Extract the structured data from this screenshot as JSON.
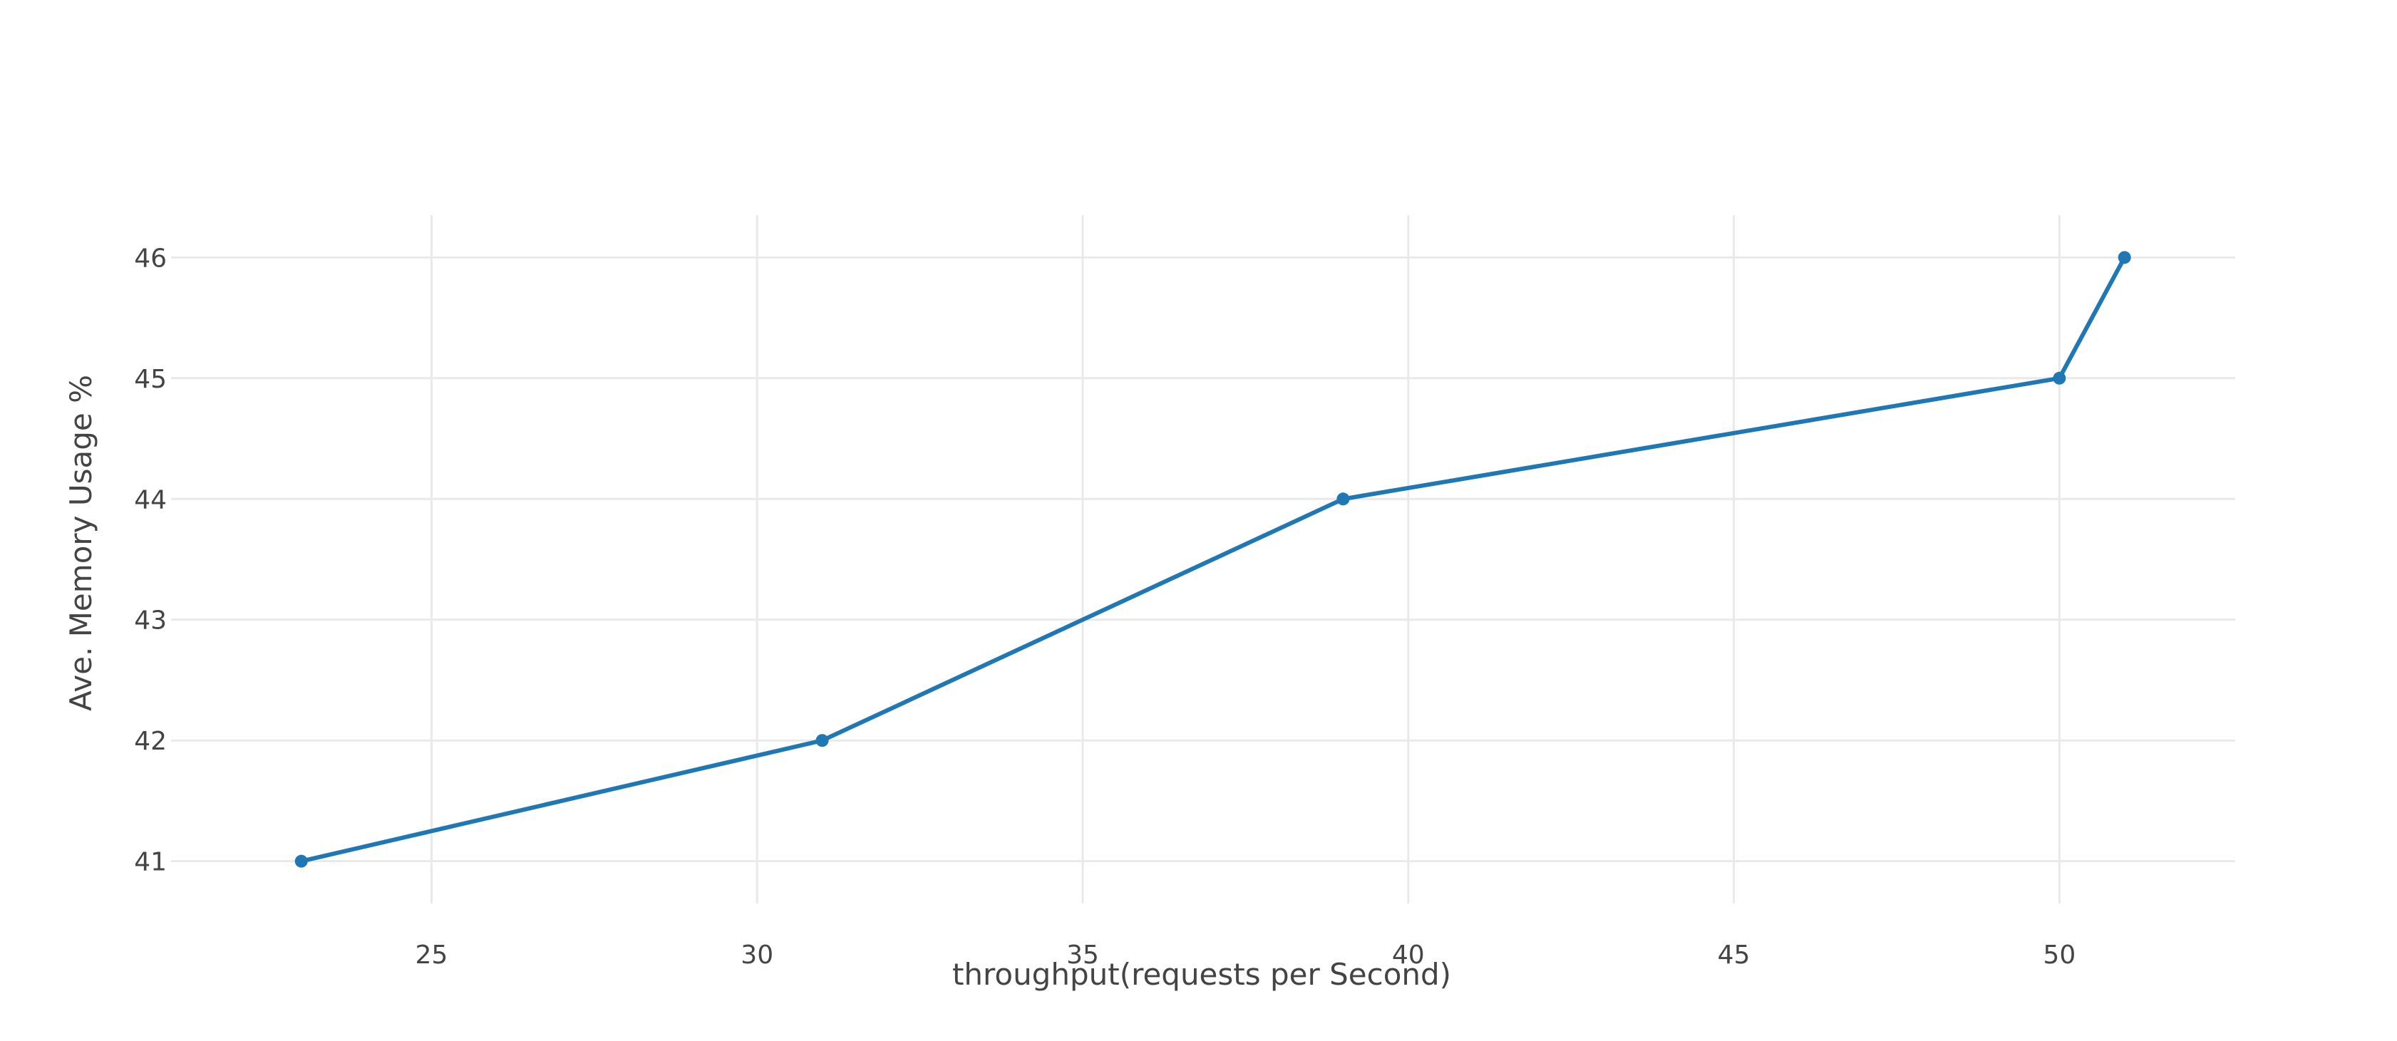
{
  "chart_data": {
    "type": "line",
    "xlabel": "throughput(requests per Second)",
    "ylabel": "Ave. Memory Usage %",
    "xlim": [
      21,
      52.7
    ],
    "ylim": [
      40.65,
      46.35
    ],
    "x_ticks": [
      25,
      30,
      35,
      40,
      45,
      50
    ],
    "y_ticks": [
      41,
      42,
      43,
      44,
      45,
      46
    ],
    "grid": true,
    "series": [
      {
        "x": [
          23,
          31,
          39,
          50,
          51
        ],
        "values": [
          41,
          42,
          44,
          45,
          46
        ]
      }
    ],
    "colors": {
      "line": "#1f77b4",
      "grid": "#e9e9e9",
      "text": "#444444"
    }
  }
}
